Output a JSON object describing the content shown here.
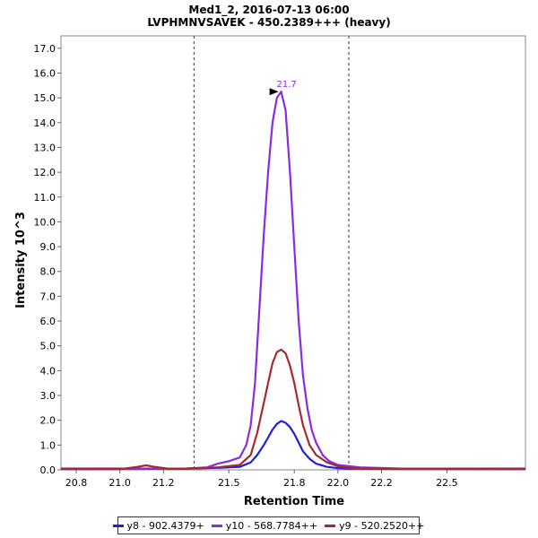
{
  "chart_data": {
    "type": "line",
    "title": "Med1_2, 2016-07-13 06:00",
    "subtitle": "LVPHMNVSAVEK - 450.2389+++ (heavy)",
    "xlabel": "Retention Time",
    "ylabel": "Intensity 10^3",
    "xlim": [
      20.73,
      22.86
    ],
    "ylim": [
      0,
      17.5
    ],
    "x_ticks": [
      "20.8",
      "21.0",
      "21.2",
      "21.5",
      "21.8",
      "22.0",
      "22.2",
      "22.5"
    ],
    "x_tick_values": [
      20.8,
      21.0,
      21.2,
      21.5,
      21.8,
      22.0,
      22.2,
      22.5
    ],
    "y_ticks": [
      "0.0",
      "1.0",
      "2.0",
      "3.0",
      "4.0",
      "5.0",
      "6.0",
      "7.0",
      "8.0",
      "9.0",
      "10.0",
      "11.0",
      "12.0",
      "13.0",
      "14.0",
      "15.0",
      "16.0",
      "17.0"
    ],
    "integration_bounds": [
      21.34,
      22.05
    ],
    "peak": {
      "x": 21.74,
      "y": 15.25,
      "label": "21.7"
    },
    "series": [
      {
        "name": "y8 - 902.4379+",
        "color": "#1f1fe0",
        "x": [
          20.73,
          21.0,
          21.3,
          21.45,
          21.55,
          21.6,
          21.63,
          21.66,
          21.68,
          21.7,
          21.72,
          21.74,
          21.76,
          21.78,
          21.8,
          21.82,
          21.84,
          21.87,
          21.9,
          21.95,
          22.0,
          22.05,
          22.1,
          22.3,
          22.86
        ],
        "values": [
          0.05,
          0.05,
          0.05,
          0.08,
          0.12,
          0.3,
          0.6,
          1.0,
          1.3,
          1.62,
          1.85,
          1.97,
          1.9,
          1.72,
          1.45,
          1.1,
          0.75,
          0.45,
          0.25,
          0.12,
          0.07,
          0.05,
          0.05,
          0.05,
          0.05
        ]
      },
      {
        "name": "y10 - 568.7784++",
        "color": "#8a2be2",
        "x": [
          20.73,
          21.0,
          21.2,
          21.3,
          21.4,
          21.45,
          21.5,
          21.55,
          21.58,
          21.6,
          21.62,
          21.64,
          21.66,
          21.68,
          21.7,
          21.72,
          21.74,
          21.76,
          21.78,
          21.8,
          21.82,
          21.84,
          21.86,
          21.88,
          21.9,
          21.93,
          21.96,
          22.0,
          22.05,
          22.1,
          22.3,
          22.86
        ],
        "values": [
          0.03,
          0.03,
          0.05,
          0.05,
          0.1,
          0.25,
          0.35,
          0.5,
          1.0,
          1.8,
          3.5,
          6.5,
          9.5,
          12.0,
          14.0,
          15.0,
          15.25,
          14.5,
          12.0,
          9.0,
          6.0,
          3.8,
          2.5,
          1.6,
          1.1,
          0.6,
          0.35,
          0.2,
          0.15,
          0.1,
          0.05,
          0.03
        ]
      },
      {
        "name": "y9 - 520.2520++",
        "color": "#a52a2a",
        "x": [
          20.73,
          21.0,
          21.08,
          21.12,
          21.16,
          21.22,
          21.3,
          21.45,
          21.55,
          21.6,
          21.63,
          21.66,
          21.68,
          21.7,
          21.72,
          21.74,
          21.76,
          21.78,
          21.8,
          21.82,
          21.84,
          21.87,
          21.9,
          21.95,
          22.0,
          22.05,
          22.1,
          22.3,
          22.86
        ],
        "values": [
          0.03,
          0.03,
          0.12,
          0.18,
          0.12,
          0.05,
          0.05,
          0.1,
          0.2,
          0.6,
          1.5,
          2.7,
          3.5,
          4.3,
          4.75,
          4.85,
          4.7,
          4.2,
          3.5,
          2.6,
          1.8,
          1.0,
          0.6,
          0.3,
          0.15,
          0.08,
          0.05,
          0.03,
          0.03
        ]
      }
    ]
  }
}
